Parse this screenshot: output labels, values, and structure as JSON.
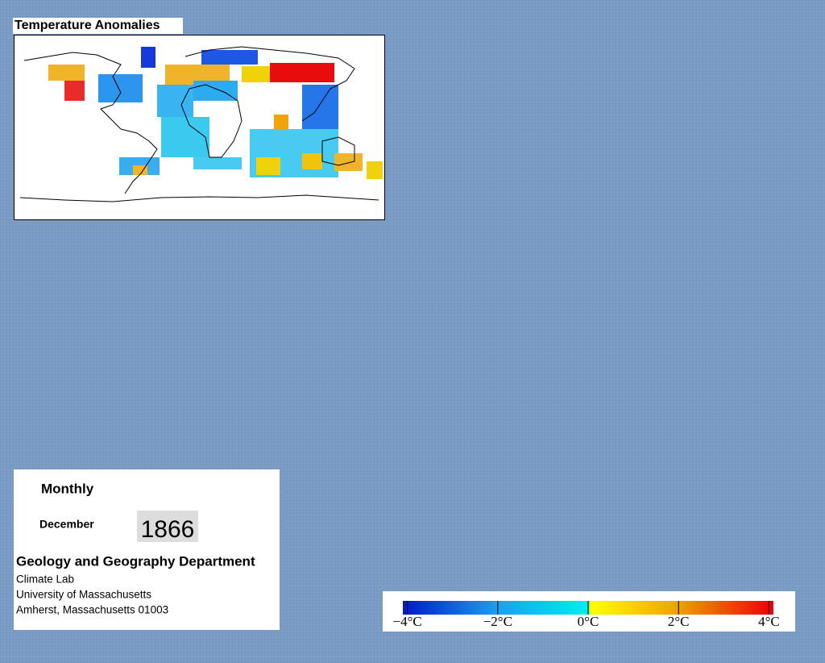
{
  "map": {
    "title": "Temperature Anomalies"
  },
  "info": {
    "frequency": "Monthly",
    "month": "December",
    "year": "1866",
    "department": "Geology and Geography Department",
    "lines": [
      "Climate Lab",
      "University of Massachusetts",
      "Amherst, Massachusetts 01003"
    ]
  },
  "colorbar": {
    "lim": [
      -4.1,
      4.1
    ],
    "ticks": [
      {
        "value": -4,
        "label": "−4°C"
      },
      {
        "value": -2,
        "label": "−2°C"
      },
      {
        "value": 0,
        "label": "0°C"
      },
      {
        "value": 2,
        "label": "2°C"
      },
      {
        "value": 4,
        "label": "4°C"
      }
    ],
    "stops": [
      {
        "value": -4.1,
        "color": "#0018c8"
      },
      {
        "value": -2,
        "color": "#1aa0f0"
      },
      {
        "value": 0,
        "color": "#00eef0"
      },
      {
        "value": 0.05,
        "color": "#ffff00"
      },
      {
        "value": 2,
        "color": "#f0a000"
      },
      {
        "value": 4.1,
        "color": "#e80000"
      }
    ]
  }
}
